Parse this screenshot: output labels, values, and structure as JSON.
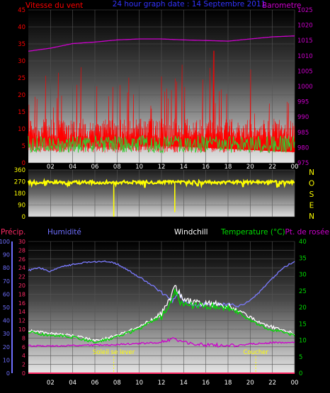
{
  "title": "24 hour graph date : 14 Septembre 2011",
  "colors": {
    "background": "#000000",
    "wind_speed": "#ff0000",
    "wind_direction_marks": "#ffff00",
    "gust": "#33cc33",
    "barometer": "#cc00cc",
    "precip": "#ff2a66",
    "humidity": "#6f6fff",
    "windchill": "#ffffff",
    "temperature": "#00dd00",
    "dewpoint": "#cc00cc",
    "sun_marker": "#ffff00"
  },
  "chart_data": [
    {
      "type": "line",
      "panel": "wind_and_barometer",
      "title": "24 hour graph date : 14 Septembre 2011",
      "x_tick_labels": [
        "02",
        "04",
        "06",
        "08",
        "10",
        "12",
        "14",
        "16",
        "18",
        "20",
        "22",
        "00"
      ],
      "left_axis": {
        "label": "Vitesse du vent",
        "ylim": [
          0,
          45
        ],
        "ticks": [
          "0",
          "5",
          "10",
          "15",
          "20",
          "25",
          "30",
          "35",
          "40",
          "45"
        ]
      },
      "right_axis": {
        "label": "Barometre",
        "ylim": [
          975,
          1025
        ],
        "ticks": [
          "975",
          "980",
          "985",
          "990",
          "995",
          "1000",
          "1005",
          "1010",
          "1015",
          "1020",
          "1025"
        ]
      },
      "series": [
        {
          "name": "Vitesse du vent",
          "axis": "left",
          "style": "filled",
          "summary": {
            "typical_low": 7,
            "typical_high": 13,
            "max": 33,
            "max_at_hour": 16.7
          }
        },
        {
          "name": "gust",
          "axis": "left",
          "style": "line",
          "summary": {
            "typical_low": 3,
            "typical_high": 8
          }
        },
        {
          "name": "Barometre",
          "axis": "right",
          "style": "line",
          "points": [
            [
              0,
              1011.5
            ],
            [
              2,
              1012.5
            ],
            [
              4,
              1014
            ],
            [
              6,
              1014.5
            ],
            [
              8,
              1015.2
            ],
            [
              10,
              1015.5
            ],
            [
              12,
              1015.5
            ],
            [
              14,
              1015.2
            ],
            [
              16,
              1015
            ],
            [
              18,
              1014.8
            ],
            [
              20,
              1015.5
            ],
            [
              22,
              1016.2
            ],
            [
              24,
              1016.5
            ]
          ]
        }
      ]
    },
    {
      "type": "scatter",
      "panel": "wind_direction",
      "x_tick_labels": [
        "02",
        "04",
        "06",
        "08",
        "10",
        "12",
        "14",
        "16",
        "18",
        "20",
        "22",
        "00"
      ],
      "left_axis": {
        "ylim": [
          0,
          360
        ],
        "ticks": [
          "0",
          "90",
          "180",
          "270",
          "360"
        ]
      },
      "compass_labels": [
        "N",
        "O",
        "S",
        "E",
        "N"
      ],
      "series": [
        {
          "name": "direction",
          "typical": 265,
          "spread": 12,
          "dips": [
            {
              "hour": 7.7,
              "value": 0
            },
            {
              "hour": 13.2,
              "value": 35
            }
          ]
        }
      ]
    },
    {
      "type": "line",
      "panel": "temperature_humidity",
      "x_tick_labels": [
        "02",
        "04",
        "06",
        "08",
        "10",
        "12",
        "14",
        "16",
        "18",
        "20",
        "22",
        "00"
      ],
      "legend_labels": {
        "precip": "Précip.",
        "humidity": "Humidité",
        "windchill": "Windchill",
        "temperature": "Temperature (°C)",
        "dewpoint": "Pt. de rosée"
      },
      "humidity_axis": {
        "ylim": [
          0,
          100
        ],
        "ticks": [
          "0",
          "10",
          "20",
          "30",
          "40",
          "50",
          "60",
          "70",
          "80",
          "90",
          "100"
        ]
      },
      "precip_axis": {
        "ylim": [
          0,
          30
        ],
        "ticks": [
          "0",
          "2",
          "4",
          "6",
          "8",
          "10",
          "12",
          "14",
          "16",
          "18",
          "20",
          "22",
          "24",
          "26",
          "28",
          "30"
        ]
      },
      "temperature_axis": {
        "ylim": [
          0,
          40
        ],
        "ticks": [
          "0",
          "5",
          "10",
          "15",
          "20",
          "25",
          "30",
          "35",
          "40"
        ]
      },
      "annotations": [
        {
          "text": "Soleil se lever",
          "hour": 7.7
        },
        {
          "text": "Coucher",
          "hour": 20.5
        }
      ],
      "series": [
        {
          "name": "Humidité",
          "axis": "humidity",
          "points": [
            [
              0,
              78
            ],
            [
              1,
              80
            ],
            [
              2,
              77
            ],
            [
              3,
              81
            ],
            [
              5,
              84
            ],
            [
              7,
              85
            ],
            [
              8,
              83
            ],
            [
              10,
              73
            ],
            [
              11.5,
              65
            ],
            [
              12.5,
              58
            ],
            [
              13,
              55
            ],
            [
              13.5,
              62
            ],
            [
              14,
              55
            ],
            [
              15,
              51
            ],
            [
              16,
              53
            ],
            [
              17,
              52
            ],
            [
              18,
              52
            ],
            [
              19,
              51
            ],
            [
              20,
              55
            ],
            [
              21,
              63
            ],
            [
              22,
              72
            ],
            [
              23,
              80
            ],
            [
              24,
              85
            ]
          ]
        },
        {
          "name": "Windchill",
          "axis": "temperature",
          "points": [
            [
              0,
              13
            ],
            [
              2,
              12
            ],
            [
              4,
              11.5
            ],
            [
              6,
              10
            ],
            [
              7,
              10.5
            ],
            [
              8,
              11.5
            ],
            [
              10,
              14
            ],
            [
              11,
              16
            ],
            [
              12,
              18
            ],
            [
              12.8,
              23
            ],
            [
              13.2,
              27
            ],
            [
              13.8,
              23
            ],
            [
              14.5,
              22
            ],
            [
              16,
              21
            ],
            [
              17.5,
              21
            ],
            [
              18.5,
              20
            ],
            [
              19.5,
              18
            ],
            [
              21,
              15
            ],
            [
              22,
              14
            ],
            [
              23,
              13
            ],
            [
              24,
              12
            ]
          ]
        },
        {
          "name": "Temperature (°C)",
          "axis": "temperature",
          "points": [
            [
              0,
              12.5
            ],
            [
              2,
              11.5
            ],
            [
              4,
              11
            ],
            [
              6,
              9.5
            ],
            [
              7,
              10
            ],
            [
              8,
              11
            ],
            [
              10,
              13.5
            ],
            [
              11,
              15.5
            ],
            [
              12,
              17
            ],
            [
              12.8,
              21.5
            ],
            [
              13.2,
              25
            ],
            [
              13.8,
              21
            ],
            [
              14.5,
              20.5
            ],
            [
              16,
              20.5
            ],
            [
              17.5,
              20
            ],
            [
              18.5,
              19.5
            ],
            [
              19.5,
              17
            ],
            [
              21,
              14.5
            ],
            [
              22,
              13
            ],
            [
              23,
              12.5
            ],
            [
              24,
              11.5
            ]
          ]
        },
        {
          "name": "Pt. de rosée",
          "axis": "temperature",
          "points": [
            [
              0,
              8.3
            ],
            [
              2,
              8.2
            ],
            [
              4,
              8.4
            ],
            [
              6,
              8.5
            ],
            [
              8,
              8.7
            ],
            [
              10,
              9
            ],
            [
              12,
              9.3
            ],
            [
              13,
              10.5
            ],
            [
              13.5,
              9.5
            ],
            [
              14,
              9.5
            ],
            [
              16,
              8.5
            ],
            [
              17,
              8.5
            ],
            [
              18,
              8.3
            ],
            [
              20,
              8.8
            ],
            [
              22,
              9.3
            ],
            [
              24,
              9.3
            ]
          ]
        },
        {
          "name": "Précip.",
          "axis": "precip",
          "points": [
            [
              0,
              0
            ],
            [
              24,
              0
            ]
          ]
        }
      ]
    }
  ]
}
